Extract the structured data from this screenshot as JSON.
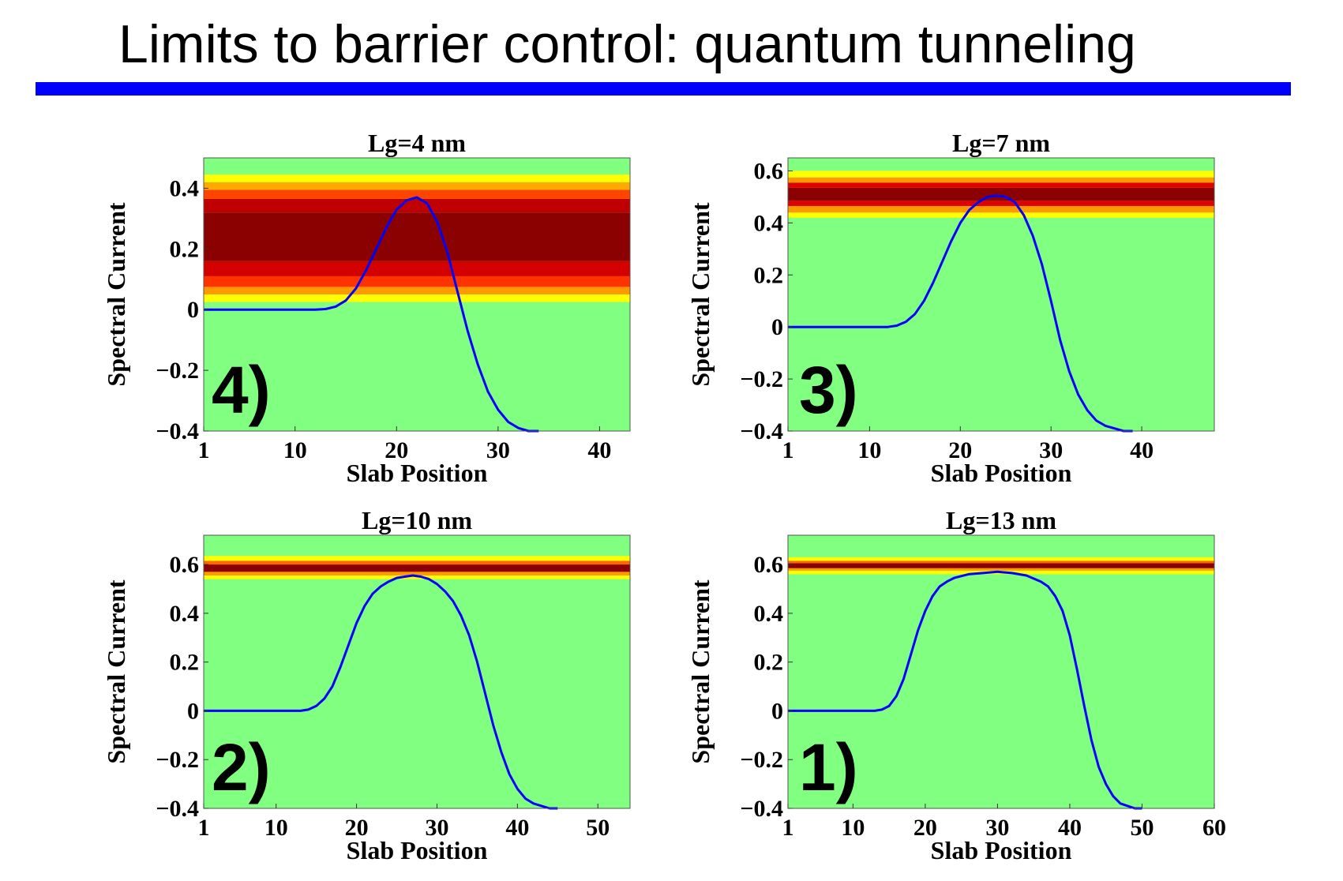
{
  "slide": {
    "title": "Limits to barrier control:  quantum tunneling",
    "accent_color": "#0000ff"
  },
  "chart_data": [
    {
      "type": "area",
      "panel_label": "4)",
      "title": "Lg=4 nm",
      "xlabel": "Slab Position",
      "ylabel": "Spectral Current",
      "xlim": [
        1,
        43
      ],
      "ylim": [
        -0.4,
        0.5
      ],
      "xticks": [
        1,
        10,
        20,
        30,
        40
      ],
      "yticks": [
        0.4,
        0.2,
        0,
        -0.2,
        -0.4
      ],
      "ytick_labels": [
        "0.4",
        "0.2",
        "0",
        "−0.2",
        "−0.4"
      ],
      "background_color": "#80ff80",
      "line_color": "#0000ff",
      "heatmap_bands": [
        {
          "y_low": 0.025,
          "y_high": 0.05,
          "color": "#ffff00"
        },
        {
          "y_low": 0.05,
          "y_high": 0.075,
          "color": "#ff9900"
        },
        {
          "y_low": 0.075,
          "y_high": 0.11,
          "color": "#ff3300"
        },
        {
          "y_low": 0.11,
          "y_high": 0.16,
          "color": "#d40000"
        },
        {
          "y_low": 0.16,
          "y_high": 0.32,
          "color": "#8b0000"
        },
        {
          "y_low": 0.32,
          "y_high": 0.365,
          "color": "#c00000"
        },
        {
          "y_low": 0.365,
          "y_high": 0.395,
          "color": "#ff4400"
        },
        {
          "y_low": 0.395,
          "y_high": 0.42,
          "color": "#ffaa00"
        },
        {
          "y_low": 0.42,
          "y_high": 0.445,
          "color": "#ffff00"
        }
      ],
      "barrier": {
        "x": [
          1,
          12,
          13,
          14,
          15,
          16,
          17,
          18,
          19,
          20,
          21,
          22,
          23,
          24,
          25,
          26,
          27,
          28,
          29,
          30,
          31,
          32,
          33,
          34
        ],
        "y": [
          0,
          0,
          0.002,
          0.01,
          0.03,
          0.07,
          0.13,
          0.2,
          0.27,
          0.33,
          0.36,
          0.37,
          0.35,
          0.29,
          0.19,
          0.06,
          -0.07,
          -0.18,
          -0.27,
          -0.33,
          -0.37,
          -0.39,
          -0.4,
          -0.4
        ]
      }
    },
    {
      "type": "area",
      "panel_label": "3)",
      "title": "Lg=7 nm",
      "xlabel": "Slab Position",
      "ylabel": "Spectral Current",
      "xlim": [
        1,
        48
      ],
      "ylim": [
        -0.4,
        0.65
      ],
      "xticks": [
        1,
        10,
        20,
        30,
        40
      ],
      "yticks": [
        0.6,
        0.4,
        0.2,
        0,
        -0.2,
        -0.4
      ],
      "ytick_labels": [
        "0.6",
        "0.4",
        "0.2",
        "0",
        "−0.2",
        "−0.4"
      ],
      "background_color": "#80ff80",
      "line_color": "#0000ff",
      "heatmap_bands": [
        {
          "y_low": 0.42,
          "y_high": 0.44,
          "color": "#ffff00"
        },
        {
          "y_low": 0.44,
          "y_high": 0.465,
          "color": "#ff9900"
        },
        {
          "y_low": 0.465,
          "y_high": 0.485,
          "color": "#e00000"
        },
        {
          "y_low": 0.485,
          "y_high": 0.535,
          "color": "#8b0000"
        },
        {
          "y_low": 0.535,
          "y_high": 0.555,
          "color": "#e00000"
        },
        {
          "y_low": 0.555,
          "y_high": 0.575,
          "color": "#ff9900"
        },
        {
          "y_low": 0.575,
          "y_high": 0.6,
          "color": "#ffff00"
        }
      ],
      "barrier": {
        "x": [
          1,
          12,
          13,
          14,
          15,
          16,
          17,
          18,
          19,
          20,
          21,
          22,
          23,
          24,
          25,
          26,
          27,
          28,
          29,
          30,
          31,
          32,
          33,
          34,
          35,
          36,
          37,
          38,
          39
        ],
        "y": [
          0,
          0,
          0.005,
          0.02,
          0.05,
          0.1,
          0.17,
          0.25,
          0.33,
          0.4,
          0.45,
          0.48,
          0.5,
          0.505,
          0.5,
          0.48,
          0.43,
          0.35,
          0.24,
          0.1,
          -0.05,
          -0.17,
          -0.26,
          -0.32,
          -0.36,
          -0.38,
          -0.39,
          -0.4,
          -0.4
        ]
      }
    },
    {
      "type": "area",
      "panel_label": "2)",
      "title": "Lg=10 nm",
      "xlabel": "Slab Position",
      "ylabel": "Spectral Current",
      "xlim": [
        1,
        54
      ],
      "ylim": [
        -0.4,
        0.72
      ],
      "xticks": [
        1,
        10,
        20,
        30,
        40,
        50
      ],
      "yticks": [
        0.6,
        0.4,
        0.2,
        0,
        -0.2,
        -0.4
      ],
      "ytick_labels": [
        "0.6",
        "0.4",
        "0.2",
        "0",
        "−0.2",
        "−0.4"
      ],
      "background_color": "#80ff80",
      "line_color": "#0000ff",
      "heatmap_bands": [
        {
          "y_low": 0.54,
          "y_high": 0.555,
          "color": "#ffff00"
        },
        {
          "y_low": 0.555,
          "y_high": 0.57,
          "color": "#ff9900"
        },
        {
          "y_low": 0.57,
          "y_high": 0.6,
          "color": "#8b0000"
        },
        {
          "y_low": 0.6,
          "y_high": 0.615,
          "color": "#ff6600"
        },
        {
          "y_low": 0.615,
          "y_high": 0.635,
          "color": "#ffff00"
        }
      ],
      "barrier": {
        "x": [
          1,
          13,
          14,
          15,
          16,
          17,
          18,
          19,
          20,
          21,
          22,
          23,
          24,
          25,
          26,
          27,
          28,
          29,
          30,
          31,
          32,
          33,
          34,
          35,
          36,
          37,
          38,
          39,
          40,
          41,
          42,
          43,
          44,
          45
        ],
        "y": [
          0,
          0,
          0.005,
          0.02,
          0.05,
          0.1,
          0.18,
          0.27,
          0.36,
          0.43,
          0.48,
          0.51,
          0.53,
          0.545,
          0.55,
          0.555,
          0.55,
          0.54,
          0.52,
          0.49,
          0.45,
          0.39,
          0.31,
          0.2,
          0.07,
          -0.06,
          -0.17,
          -0.26,
          -0.32,
          -0.36,
          -0.38,
          -0.39,
          -0.4,
          -0.4
        ]
      }
    },
    {
      "type": "area",
      "panel_label": "1)",
      "title": "Lg=13 nm",
      "xlabel": "Slab Position",
      "ylabel": "Spectral Current",
      "xlim": [
        1,
        60
      ],
      "ylim": [
        -0.4,
        0.72
      ],
      "xticks": [
        1,
        10,
        20,
        30,
        40,
        50,
        60
      ],
      "yticks": [
        0.6,
        0.4,
        0.2,
        0,
        -0.2,
        -0.4
      ],
      "ytick_labels": [
        "0.6",
        "0.4",
        "0.2",
        "0",
        "−0.2",
        "−0.4"
      ],
      "background_color": "#80ff80",
      "line_color": "#0000ff",
      "heatmap_bands": [
        {
          "y_low": 0.56,
          "y_high": 0.575,
          "color": "#ffff00"
        },
        {
          "y_low": 0.575,
          "y_high": 0.585,
          "color": "#ff9900"
        },
        {
          "y_low": 0.585,
          "y_high": 0.605,
          "color": "#8b0000"
        },
        {
          "y_low": 0.605,
          "y_high": 0.615,
          "color": "#ff6600"
        },
        {
          "y_low": 0.615,
          "y_high": 0.63,
          "color": "#ffff00"
        }
      ],
      "barrier": {
        "x": [
          1,
          13,
          14,
          15,
          16,
          17,
          18,
          19,
          20,
          21,
          22,
          23,
          24,
          26,
          28,
          30,
          32,
          34,
          36,
          37,
          38,
          39,
          40,
          41,
          42,
          43,
          44,
          45,
          46,
          47,
          48,
          49,
          50
        ],
        "y": [
          0,
          0,
          0.005,
          0.02,
          0.06,
          0.13,
          0.23,
          0.33,
          0.41,
          0.47,
          0.51,
          0.53,
          0.545,
          0.56,
          0.565,
          0.57,
          0.565,
          0.555,
          0.53,
          0.51,
          0.47,
          0.41,
          0.31,
          0.17,
          0.02,
          -0.12,
          -0.23,
          -0.3,
          -0.35,
          -0.38,
          -0.39,
          -0.4,
          -0.4
        ]
      }
    }
  ]
}
